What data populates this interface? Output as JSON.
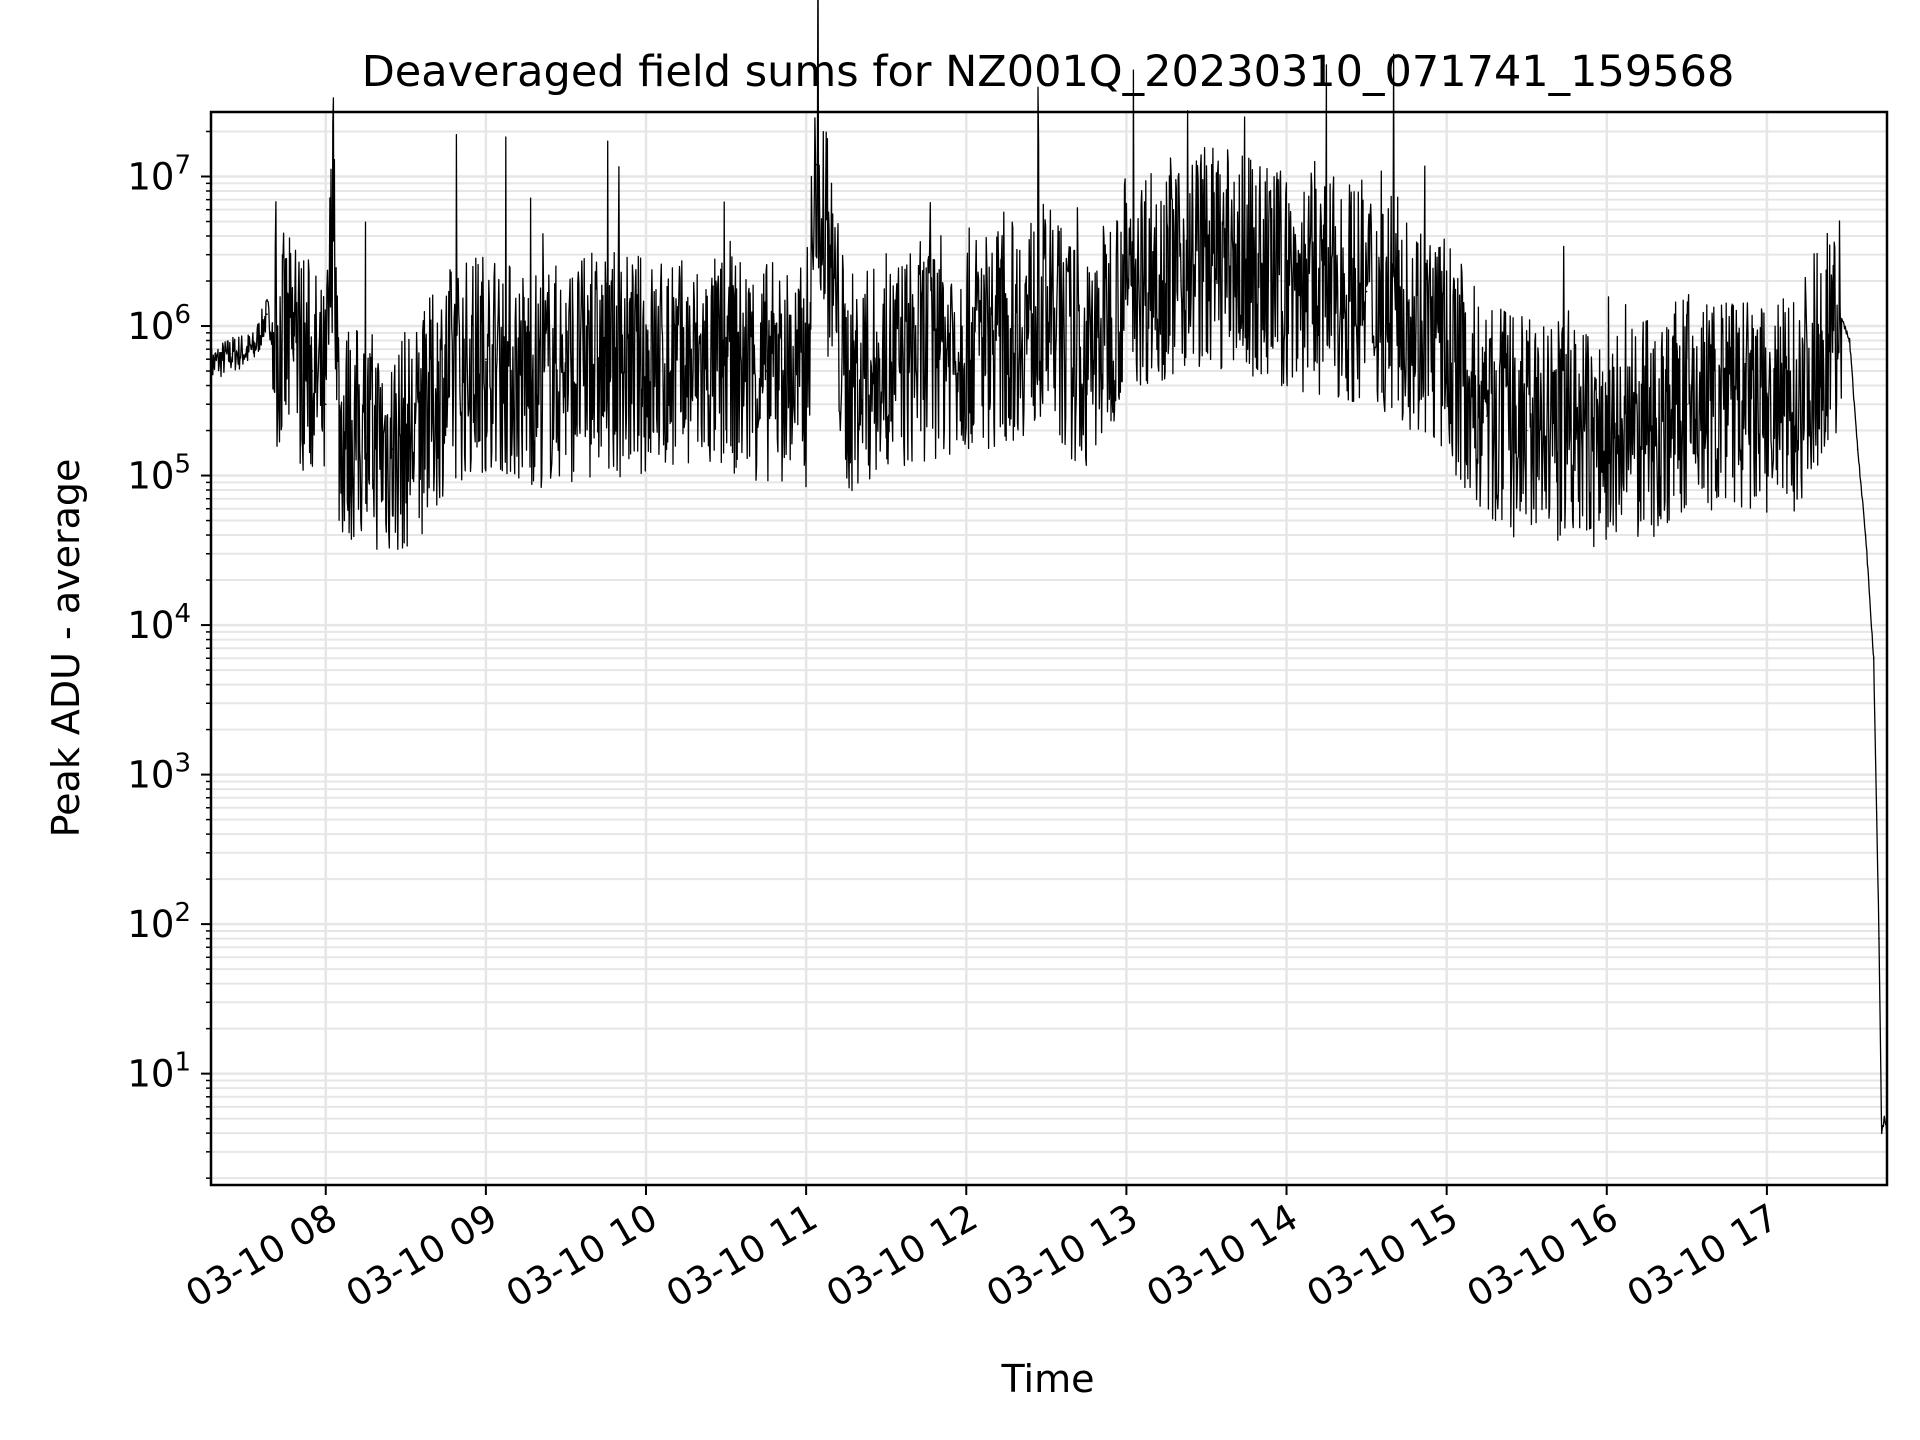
{
  "chart_data": {
    "type": "line",
    "title": "Deaveraged field sums for NZ001Q_20230310_071741_159568",
    "xlabel": "Time",
    "ylabel": "Peak ADU - average",
    "yscale": "log",
    "xlim": [
      "03-10 07:17",
      "03-10 17:45"
    ],
    "ylim": [
      1.8,
      27000000
    ],
    "grid": true,
    "line_color": "#000000",
    "x_ticks": [
      "03-10 08",
      "03-10 09",
      "03-10 10",
      "03-10 11",
      "03-10 12",
      "03-10 13",
      "03-10 14",
      "03-10 15",
      "03-10 16",
      "03-10 17"
    ],
    "y_ticks": [
      {
        "base": "10",
        "exp": "1"
      },
      {
        "base": "10",
        "exp": "2"
      },
      {
        "base": "10",
        "exp": "3"
      },
      {
        "base": "10",
        "exp": "4"
      },
      {
        "base": "10",
        "exp": "5"
      },
      {
        "base": "10",
        "exp": "6"
      },
      {
        "base": "10",
        "exp": "7"
      }
    ],
    "series": [
      {
        "x": [
          "03-10 07:17",
          "03-10 07:25",
          "03-10 07:33",
          "03-10 07:38",
          "03-10 07:42",
          "03-10 07:48",
          "03-10 07:55",
          "03-10 08:00",
          "03-10 08:03",
          "03-10 08:05",
          "03-10 08:15",
          "03-10 08:25",
          "03-10 08:35",
          "03-10 08:45",
          "03-10 09:00",
          "03-10 09:15",
          "03-10 09:30",
          "03-10 09:45",
          "03-10 10:00",
          "03-10 10:15",
          "03-10 10:30",
          "03-10 10:45",
          "03-10 11:00",
          "03-10 11:04",
          "03-10 11:15",
          "03-10 11:30",
          "03-10 11:45",
          "03-10 12:00",
          "03-10 12:15",
          "03-10 12:30",
          "03-10 12:45",
          "03-10 13:00",
          "03-10 13:15",
          "03-10 13:30",
          "03-10 13:45",
          "03-10 14:00",
          "03-10 14:15",
          "03-10 14:30",
          "03-10 14:45",
          "03-10 15:00",
          "03-10 15:15",
          "03-10 15:30",
          "03-10 15:45",
          "03-10 16:00",
          "03-10 16:15",
          "03-10 16:30",
          "03-10 16:45",
          "03-10 17:00",
          "03-10 17:10",
          "03-10 17:20",
          "03-10 17:25",
          "03-10 17:28",
          "03-10 17:31",
          "03-10 17:34",
          "03-10 17:37",
          "03-10 17:40",
          "03-10 17:42",
          "03-10 17:43",
          "03-10 17:44",
          "03-10 17:45"
        ],
        "y": [
          550000,
          650000,
          700000,
          1200000,
          800000,
          700000,
          500000,
          300000,
          10000000,
          200000,
          180000,
          150000,
          200000,
          450000,
          600000,
          450000,
          500000,
          550000,
          550000,
          500000,
          550000,
          500000,
          450000,
          12000000,
          400000,
          500000,
          700000,
          800000,
          900000,
          1200000,
          500000,
          2000000,
          2500000,
          3000000,
          2500000,
          2000000,
          1800000,
          1700000,
          1200000,
          700000,
          250000,
          200000,
          200000,
          150000,
          200000,
          300000,
          300000,
          250000,
          300000,
          700000,
          1000000,
          1100000,
          800000,
          150000,
          40000,
          6000,
          80,
          4,
          5,
          4
        ]
      }
    ]
  }
}
